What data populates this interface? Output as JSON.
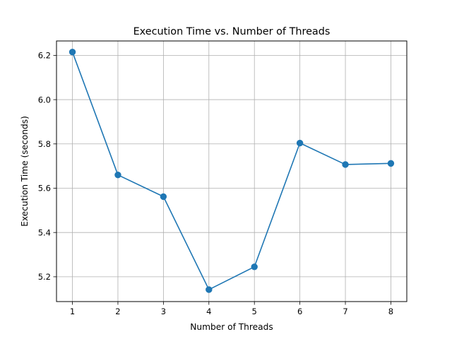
{
  "chart_data": {
    "type": "line",
    "title": "Execution Time vs. Number of Threads",
    "xlabel": "Number of Threads",
    "ylabel": "Execution Time (seconds)",
    "x": [
      1,
      2,
      3,
      4,
      5,
      6,
      7,
      8
    ],
    "series": [
      {
        "name": "Execution Time",
        "color": "#1f77b4",
        "marker": "circle",
        "values": [
          6.215,
          5.66,
          5.562,
          5.142,
          5.245,
          5.804,
          5.707,
          5.712
        ]
      }
    ],
    "xlim": [
      0.65,
      8.35
    ],
    "ylim": [
      5.088,
      6.265
    ],
    "xticks": [
      1,
      2,
      3,
      4,
      5,
      6,
      7,
      8
    ],
    "xtick_labels": [
      "1",
      "2",
      "3",
      "4",
      "5",
      "6",
      "7",
      "8"
    ],
    "yticks": [
      5.2,
      5.4,
      5.6,
      5.8,
      6.0,
      6.2
    ],
    "ytick_labels": [
      "5.2",
      "5.4",
      "5.6",
      "5.8",
      "6.0",
      "6.2"
    ],
    "grid": true,
    "legend": "none"
  }
}
